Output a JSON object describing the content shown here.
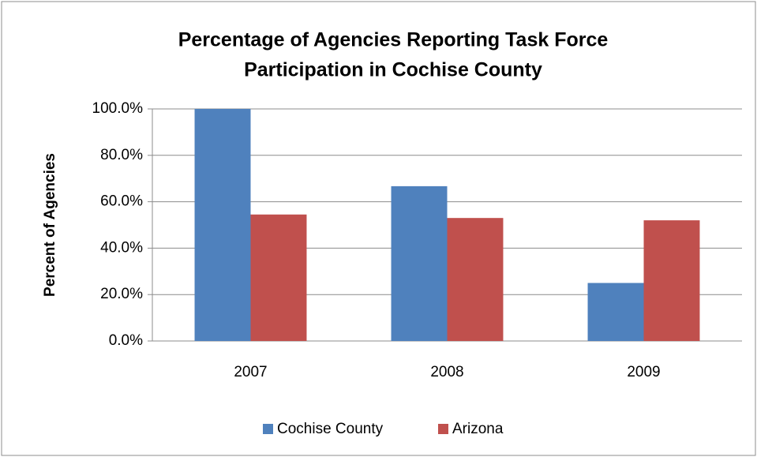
{
  "chart_data": {
    "type": "bar",
    "title": [
      "Percentage of Agencies Reporting Task Force",
      "Participation in Cochise County"
    ],
    "y_label": "Percent of Agencies",
    "categories": [
      "2007",
      "2008",
      "2009"
    ],
    "series": [
      {
        "name": "Cochise County",
        "color": "#4f81bd",
        "values": [
          100,
          66.7,
          25
        ]
      },
      {
        "name": "Arizona",
        "color": "#c0504d",
        "values": [
          54.5,
          53,
          52
        ]
      }
    ],
    "ylim": [
      0,
      100
    ],
    "yticks": [
      {
        "value": 0,
        "label": "0.0%"
      },
      {
        "value": 20,
        "label": "20.0%"
      },
      {
        "value": 40,
        "label": "40.0%"
      },
      {
        "value": 60,
        "label": "60.0%"
      },
      {
        "value": 80,
        "label": "80.0%"
      },
      {
        "value": 100,
        "label": "100.0%"
      }
    ],
    "grid": true,
    "legend": "bottom"
  }
}
